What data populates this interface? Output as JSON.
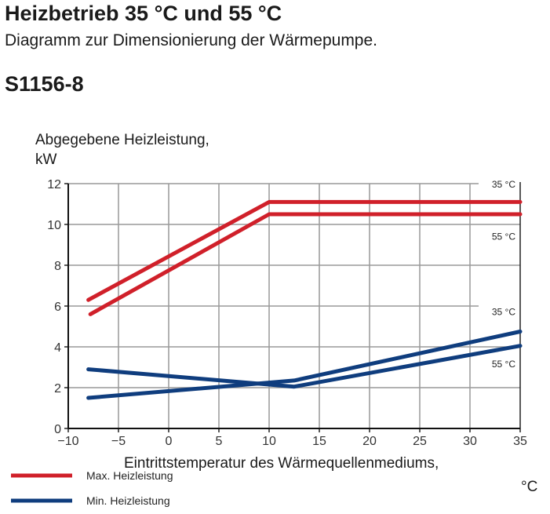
{
  "header": {
    "title": "Heizbetrieb 35  °C und 55  °C",
    "subtitle": "Diagramm zur Dimensionierung der Wärmepumpe.",
    "model": "S1156-8"
  },
  "chart_data": {
    "type": "line",
    "title": "Heizbetrieb 35 °C und 55 °C",
    "ylabel_line1": "Abgegebene Heizleistung,",
    "ylabel_line2": "kW",
    "xlabel_line1": "Eintrittstemperatur des Wärmequellenmediums,",
    "xlabel_line2": "°C",
    "xlim": [
      -10,
      35
    ],
    "ylim": [
      0,
      12
    ],
    "xticks": [
      -10,
      -5,
      0,
      5,
      10,
      15,
      20,
      25,
      30,
      35
    ],
    "xtick_labels": [
      "−10",
      "−5",
      "0",
      "5",
      "10",
      "15",
      "20",
      "25",
      "30",
      "35"
    ],
    "yticks": [
      0,
      2,
      4,
      6,
      8,
      10,
      12
    ],
    "ytick_labels": [
      "0",
      "2",
      "4",
      "6",
      "8",
      "10",
      "12"
    ],
    "grid": true,
    "series": [
      {
        "name": "Max. Heizleistung 35 °C",
        "label": "35 °C",
        "color": "#d0202a",
        "x": [
          -8,
          10,
          35
        ],
        "y": [
          6.3,
          11.1,
          11.1
        ]
      },
      {
        "name": "Max. Heizleistung 55 °C",
        "label": "55 °C",
        "color": "#d0202a",
        "x": [
          -7.8,
          10,
          35
        ],
        "y": [
          5.6,
          10.5,
          10.5
        ]
      },
      {
        "name": "Min. Heizleistung 35 °C",
        "label": "35 °C",
        "color": "#0f3d7e",
        "x": [
          -8,
          12.5,
          35
        ],
        "y": [
          1.5,
          2.35,
          4.75
        ]
      },
      {
        "name": "Min. Heizleistung 55 °C",
        "label": "55 °C",
        "color": "#0f3d7e",
        "x": [
          -8,
          12.5,
          35
        ],
        "y": [
          2.9,
          2.05,
          4.05
        ]
      }
    ],
    "series_labels": [
      {
        "text": "35 °C",
        "y": 12
      },
      {
        "text": "55 °C",
        "y": 9.45
      },
      {
        "text": "35 °C",
        "y": 5.75
      },
      {
        "text": "55 °C",
        "y": 3.2
      }
    ],
    "legend": {
      "placement": "bottom-left",
      "items": [
        {
          "label": "Max. Heizleistung",
          "color": "#d0202a"
        },
        {
          "label": "Min. Heizleistung",
          "color": "#0f3d7e"
        }
      ]
    }
  }
}
